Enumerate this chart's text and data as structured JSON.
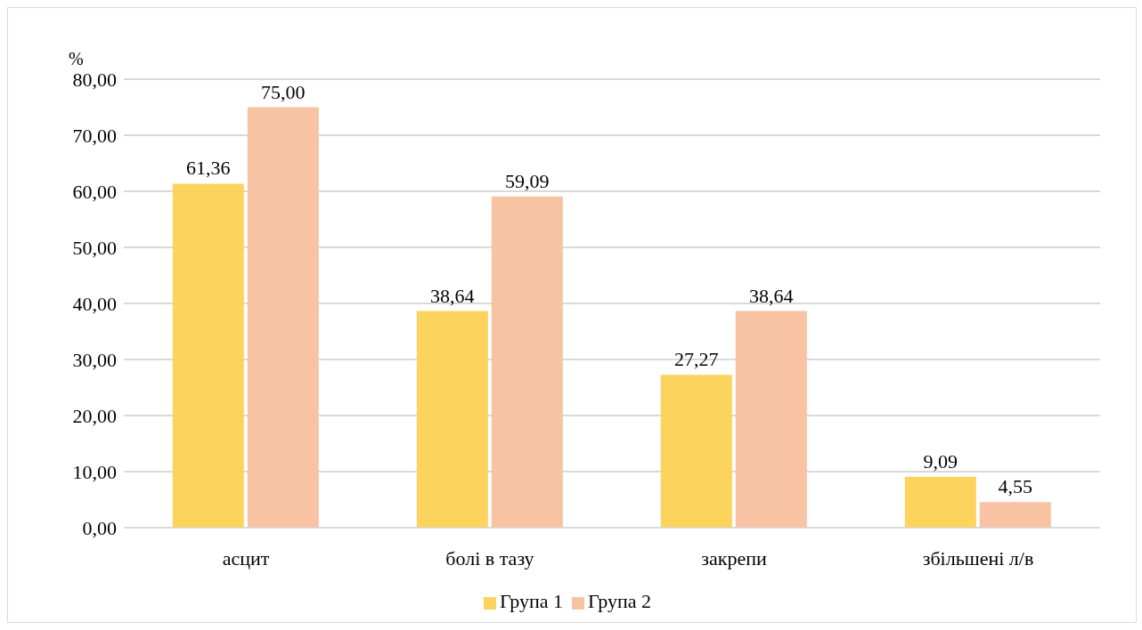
{
  "chart_data": {
    "type": "bar",
    "ylabel": "%",
    "categories": [
      "асцит",
      "болі в тазу",
      "закрепи",
      "збільшені л/в"
    ],
    "series": [
      {
        "name": "Група 1",
        "color": "#fcd35c",
        "values": [
          61.36,
          38.64,
          27.27,
          9.09
        ],
        "value_labels": [
          "61,36",
          "38,64",
          "27,27",
          "9,09"
        ]
      },
      {
        "name": "Група 2",
        "color": "#f7c3a3",
        "values": [
          75.0,
          59.09,
          38.64,
          4.55
        ],
        "value_labels": [
          "75,00",
          "59,09",
          "38,64",
          "4,55"
        ]
      }
    ],
    "ylim": [
      0,
      80
    ],
    "yticks": [
      {
        "value": 0,
        "label": "0,00"
      },
      {
        "value": 10,
        "label": "10,00"
      },
      {
        "value": 20,
        "label": "20,00"
      },
      {
        "value": 30,
        "label": "30,00"
      },
      {
        "value": 40,
        "label": "40,00"
      },
      {
        "value": 50,
        "label": "50,00"
      },
      {
        "value": 60,
        "label": "60,00"
      },
      {
        "value": 70,
        "label": "70,00"
      },
      {
        "value": 80,
        "label": "80,00"
      }
    ],
    "grid": "y",
    "legend": "bottom"
  }
}
